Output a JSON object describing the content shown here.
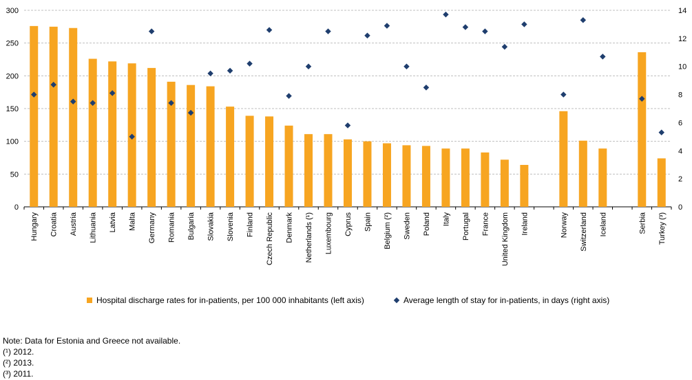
{
  "chart_data": {
    "type": "bar",
    "categories": [
      "Hungary",
      "Croatia",
      "Austria",
      "Lithuania",
      "Latvia",
      "Malta",
      "Germany",
      "Romania",
      "Bulgaria",
      "Slovakia",
      "Slovenia",
      "Finland",
      "Czech Republic",
      "Denmark",
      "Netherlands (¹)",
      "Luxembourg",
      "Cyprus",
      "Spain",
      "Belgium (²)",
      "Sweden",
      "Poland",
      "Italy",
      "Portugal",
      "France",
      "United Kingdom",
      "Ireland",
      "",
      "Norway",
      "Switzerland",
      "Iceland",
      "",
      "Serbia",
      "Turkey (³)"
    ],
    "series": [
      {
        "name": "Hospital discharge rates for in-patients, per 100 000 inhabitants (left axis)",
        "type": "bar",
        "axis": "left",
        "color": "#f7a521",
        "values": [
          276,
          275,
          273,
          226,
          222,
          219,
          212,
          191,
          186,
          184,
          153,
          139,
          138,
          124,
          111,
          111,
          103,
          100,
          97,
          94,
          93,
          89,
          89,
          83,
          72,
          64,
          null,
          146,
          101,
          89,
          null,
          236,
          74
        ]
      },
      {
        "name": "Average length of stay for in-patients, in days (right axis)",
        "type": "scatter",
        "axis": "right",
        "color": "#1f3e6e",
        "values": [
          8.0,
          8.7,
          7.5,
          7.4,
          8.1,
          5.0,
          12.5,
          7.4,
          6.7,
          9.5,
          9.7,
          10.2,
          12.6,
          7.9,
          10.0,
          12.5,
          5.8,
          12.2,
          12.9,
          10.0,
          8.5,
          13.7,
          12.8,
          12.5,
          11.4,
          13.0,
          null,
          8.0,
          13.3,
          10.7,
          null,
          7.7,
          5.3
        ]
      }
    ],
    "left_axis": {
      "min": 0,
      "max": 300,
      "ticks": [
        0,
        50,
        100,
        150,
        200,
        250,
        300
      ]
    },
    "right_axis": {
      "min": 0,
      "max": 14,
      "ticks": [
        0,
        2,
        4,
        6,
        8,
        10,
        12,
        14
      ]
    },
    "grid": true,
    "legend_position": "bottom"
  },
  "legend": {
    "bars": "Hospital discharge rates for in-patients, per 100 000 inhabitants (left axis)",
    "points": "Average length of stay for in-patients, in days (right axis)"
  },
  "notes": [
    "Note: Data for Estonia and Greece not available.",
    "(¹) 2012.",
    "(²) 2013.",
    "(³) 2011."
  ]
}
